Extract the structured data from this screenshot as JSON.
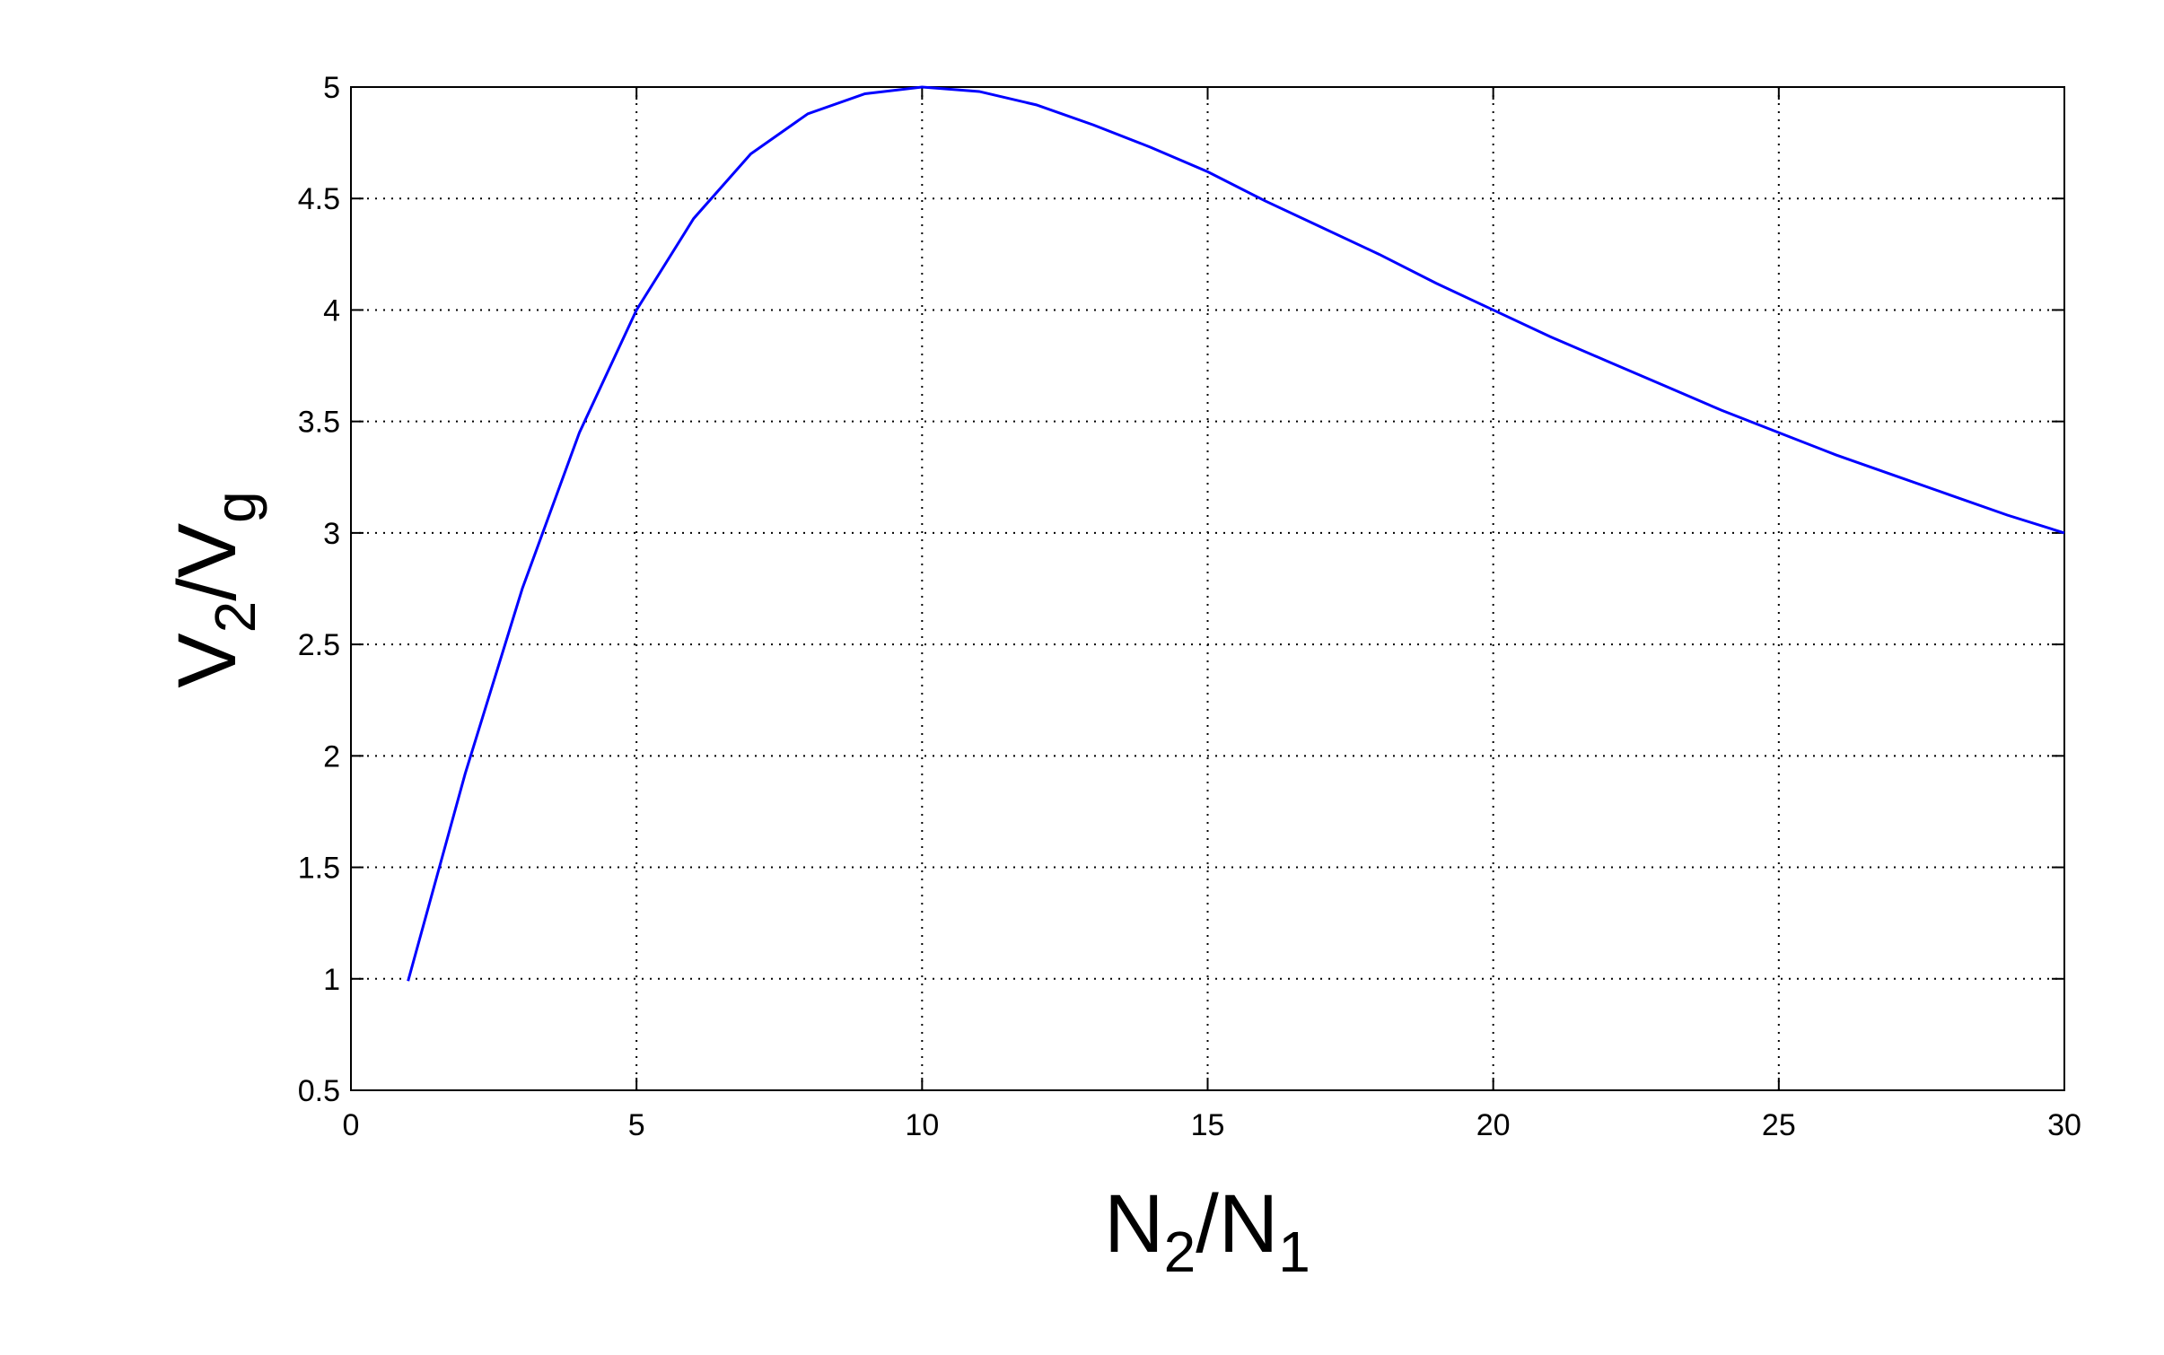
{
  "chart_data": {
    "type": "line",
    "x_label": [
      "N",
      "2",
      "/N",
      "1"
    ],
    "y_label": [
      "V",
      "2",
      "/V",
      "g"
    ],
    "x": [
      1,
      2,
      3,
      4,
      5,
      6,
      7,
      8,
      9,
      10,
      11,
      12,
      13,
      14,
      15,
      16,
      17,
      18,
      19,
      20,
      21,
      22,
      23,
      24,
      25,
      26,
      27,
      28,
      29,
      30
    ],
    "series": [
      {
        "color": "#0000ff",
        "values": [
          0.99,
          1.92,
          2.75,
          3.45,
          4.0,
          4.41,
          4.7,
          4.88,
          4.97,
          5.0,
          4.98,
          4.92,
          4.83,
          4.73,
          4.62,
          4.49,
          4.37,
          4.25,
          4.12,
          4.0,
          3.88,
          3.77,
          3.66,
          3.55,
          3.45,
          3.35,
          3.26,
          3.17,
          3.08,
          3.0
        ]
      }
    ],
    "xlim": [
      0,
      30
    ],
    "xticks": [
      0,
      5,
      10,
      15,
      20,
      25,
      30
    ],
    "ylim": [
      0.5,
      5
    ],
    "yticks": [
      0.5,
      1,
      1.5,
      2,
      2.5,
      3,
      3.5,
      4,
      4.5,
      5
    ],
    "grid": true
  }
}
